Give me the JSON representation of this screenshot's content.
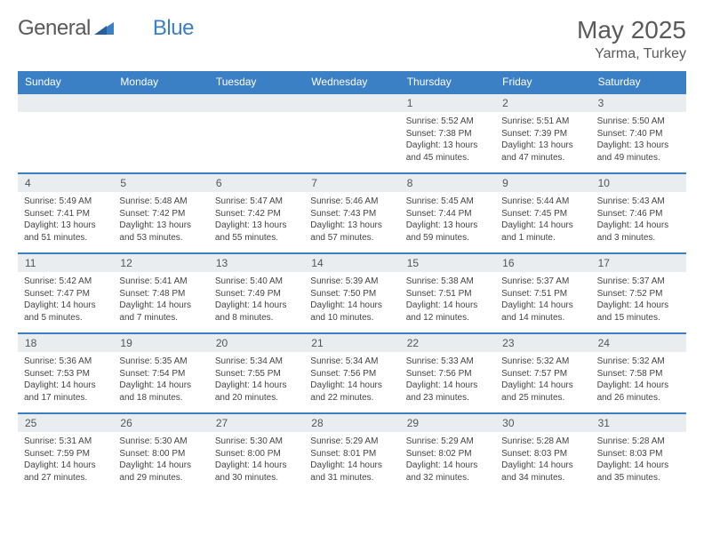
{
  "logo": {
    "text1": "General",
    "text2": "Blue"
  },
  "title": "May 2025",
  "location": "Yarma, Turkey",
  "colors": {
    "header_bg": "#3b7fc4",
    "date_row_bg": "#e9edf0",
    "border": "#3b7fc4",
    "text": "#444444",
    "title_text": "#5a5a5a"
  },
  "day_names": [
    "Sunday",
    "Monday",
    "Tuesday",
    "Wednesday",
    "Thursday",
    "Friday",
    "Saturday"
  ],
  "weeks": [
    {
      "dates": [
        "",
        "",
        "",
        "",
        "1",
        "2",
        "3"
      ],
      "cells": [
        null,
        null,
        null,
        null,
        {
          "sunrise": "Sunrise: 5:52 AM",
          "sunset": "Sunset: 7:38 PM",
          "daylight": "Daylight: 13 hours and 45 minutes."
        },
        {
          "sunrise": "Sunrise: 5:51 AM",
          "sunset": "Sunset: 7:39 PM",
          "daylight": "Daylight: 13 hours and 47 minutes."
        },
        {
          "sunrise": "Sunrise: 5:50 AM",
          "sunset": "Sunset: 7:40 PM",
          "daylight": "Daylight: 13 hours and 49 minutes."
        }
      ]
    },
    {
      "dates": [
        "4",
        "5",
        "6",
        "7",
        "8",
        "9",
        "10"
      ],
      "cells": [
        {
          "sunrise": "Sunrise: 5:49 AM",
          "sunset": "Sunset: 7:41 PM",
          "daylight": "Daylight: 13 hours and 51 minutes."
        },
        {
          "sunrise": "Sunrise: 5:48 AM",
          "sunset": "Sunset: 7:42 PM",
          "daylight": "Daylight: 13 hours and 53 minutes."
        },
        {
          "sunrise": "Sunrise: 5:47 AM",
          "sunset": "Sunset: 7:42 PM",
          "daylight": "Daylight: 13 hours and 55 minutes."
        },
        {
          "sunrise": "Sunrise: 5:46 AM",
          "sunset": "Sunset: 7:43 PM",
          "daylight": "Daylight: 13 hours and 57 minutes."
        },
        {
          "sunrise": "Sunrise: 5:45 AM",
          "sunset": "Sunset: 7:44 PM",
          "daylight": "Daylight: 13 hours and 59 minutes."
        },
        {
          "sunrise": "Sunrise: 5:44 AM",
          "sunset": "Sunset: 7:45 PM",
          "daylight": "Daylight: 14 hours and 1 minute."
        },
        {
          "sunrise": "Sunrise: 5:43 AM",
          "sunset": "Sunset: 7:46 PM",
          "daylight": "Daylight: 14 hours and 3 minutes."
        }
      ]
    },
    {
      "dates": [
        "11",
        "12",
        "13",
        "14",
        "15",
        "16",
        "17"
      ],
      "cells": [
        {
          "sunrise": "Sunrise: 5:42 AM",
          "sunset": "Sunset: 7:47 PM",
          "daylight": "Daylight: 14 hours and 5 minutes."
        },
        {
          "sunrise": "Sunrise: 5:41 AM",
          "sunset": "Sunset: 7:48 PM",
          "daylight": "Daylight: 14 hours and 7 minutes."
        },
        {
          "sunrise": "Sunrise: 5:40 AM",
          "sunset": "Sunset: 7:49 PM",
          "daylight": "Daylight: 14 hours and 8 minutes."
        },
        {
          "sunrise": "Sunrise: 5:39 AM",
          "sunset": "Sunset: 7:50 PM",
          "daylight": "Daylight: 14 hours and 10 minutes."
        },
        {
          "sunrise": "Sunrise: 5:38 AM",
          "sunset": "Sunset: 7:51 PM",
          "daylight": "Daylight: 14 hours and 12 minutes."
        },
        {
          "sunrise": "Sunrise: 5:37 AM",
          "sunset": "Sunset: 7:51 PM",
          "daylight": "Daylight: 14 hours and 14 minutes."
        },
        {
          "sunrise": "Sunrise: 5:37 AM",
          "sunset": "Sunset: 7:52 PM",
          "daylight": "Daylight: 14 hours and 15 minutes."
        }
      ]
    },
    {
      "dates": [
        "18",
        "19",
        "20",
        "21",
        "22",
        "23",
        "24"
      ],
      "cells": [
        {
          "sunrise": "Sunrise: 5:36 AM",
          "sunset": "Sunset: 7:53 PM",
          "daylight": "Daylight: 14 hours and 17 minutes."
        },
        {
          "sunrise": "Sunrise: 5:35 AM",
          "sunset": "Sunset: 7:54 PM",
          "daylight": "Daylight: 14 hours and 18 minutes."
        },
        {
          "sunrise": "Sunrise: 5:34 AM",
          "sunset": "Sunset: 7:55 PM",
          "daylight": "Daylight: 14 hours and 20 minutes."
        },
        {
          "sunrise": "Sunrise: 5:34 AM",
          "sunset": "Sunset: 7:56 PM",
          "daylight": "Daylight: 14 hours and 22 minutes."
        },
        {
          "sunrise": "Sunrise: 5:33 AM",
          "sunset": "Sunset: 7:56 PM",
          "daylight": "Daylight: 14 hours and 23 minutes."
        },
        {
          "sunrise": "Sunrise: 5:32 AM",
          "sunset": "Sunset: 7:57 PM",
          "daylight": "Daylight: 14 hours and 25 minutes."
        },
        {
          "sunrise": "Sunrise: 5:32 AM",
          "sunset": "Sunset: 7:58 PM",
          "daylight": "Daylight: 14 hours and 26 minutes."
        }
      ]
    },
    {
      "dates": [
        "25",
        "26",
        "27",
        "28",
        "29",
        "30",
        "31"
      ],
      "cells": [
        {
          "sunrise": "Sunrise: 5:31 AM",
          "sunset": "Sunset: 7:59 PM",
          "daylight": "Daylight: 14 hours and 27 minutes."
        },
        {
          "sunrise": "Sunrise: 5:30 AM",
          "sunset": "Sunset: 8:00 PM",
          "daylight": "Daylight: 14 hours and 29 minutes."
        },
        {
          "sunrise": "Sunrise: 5:30 AM",
          "sunset": "Sunset: 8:00 PM",
          "daylight": "Daylight: 14 hours and 30 minutes."
        },
        {
          "sunrise": "Sunrise: 5:29 AM",
          "sunset": "Sunset: 8:01 PM",
          "daylight": "Daylight: 14 hours and 31 minutes."
        },
        {
          "sunrise": "Sunrise: 5:29 AM",
          "sunset": "Sunset: 8:02 PM",
          "daylight": "Daylight: 14 hours and 32 minutes."
        },
        {
          "sunrise": "Sunrise: 5:28 AM",
          "sunset": "Sunset: 8:03 PM",
          "daylight": "Daylight: 14 hours and 34 minutes."
        },
        {
          "sunrise": "Sunrise: 5:28 AM",
          "sunset": "Sunset: 8:03 PM",
          "daylight": "Daylight: 14 hours and 35 minutes."
        }
      ]
    }
  ]
}
